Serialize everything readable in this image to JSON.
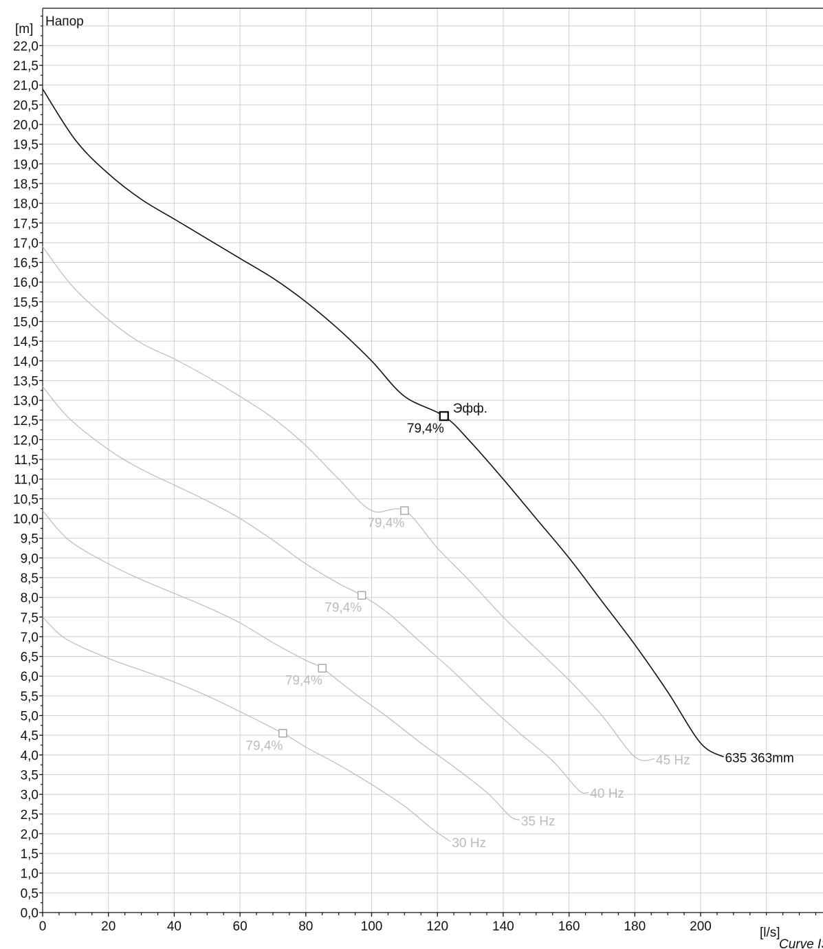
{
  "chart_data": {
    "type": "line",
    "title": "",
    "y_axis_title": "Напор",
    "ylabel": "[m]",
    "xlabel": "[l/s]",
    "footer": "Curve ISO",
    "xlim": [
      0,
      236
    ],
    "ylim": [
      0,
      22.8
    ],
    "x_ticks": [
      0,
      20,
      40,
      60,
      80,
      100,
      120,
      140,
      160,
      180,
      200
    ],
    "y_ticks": [
      "0,0",
      "0,5",
      "1,0",
      "1,5",
      "2,0",
      "2,5",
      "3,0",
      "3,5",
      "4,0",
      "4,5",
      "5,0",
      "5,5",
      "6,0",
      "6,5",
      "7,0",
      "7,5",
      "8,0",
      "8,5",
      "9,0",
      "9,5",
      "10,0",
      "10,5",
      "11,0",
      "11,5",
      "12,0",
      "12,5",
      "13,0",
      "13,5",
      "14,0",
      "14,5",
      "15,0",
      "15,5",
      "16,0",
      "16,5",
      "17,0",
      "17,5",
      "18,0",
      "18,5",
      "19,0",
      "19,5",
      "20,0",
      "20,5",
      "21,0",
      "21,5",
      "22,0"
    ],
    "grid": true,
    "series": [
      {
        "name": "635 363mm",
        "color": "#111111",
        "points": [
          [
            0,
            20.9
          ],
          [
            10,
            19.6
          ],
          [
            20,
            18.75
          ],
          [
            30,
            18.1
          ],
          [
            40,
            17.6
          ],
          [
            50,
            17.1
          ],
          [
            60,
            16.6
          ],
          [
            70,
            16.1
          ],
          [
            80,
            15.5
          ],
          [
            90,
            14.8
          ],
          [
            100,
            14.0
          ],
          [
            110,
            13.1
          ],
          [
            122,
            12.6
          ],
          [
            130,
            11.95
          ],
          [
            140,
            11.0
          ],
          [
            150,
            10.0
          ],
          [
            160,
            9.0
          ],
          [
            170,
            7.9
          ],
          [
            180,
            6.8
          ],
          [
            190,
            5.6
          ],
          [
            200,
            4.3
          ],
          [
            207,
            3.95
          ]
        ],
        "marker": {
          "x": 122,
          "y": 12.6,
          "label": "79,4%"
        },
        "efficiency_label": "Эфф."
      },
      {
        "name": "45 Hz",
        "color": "#bbbbbb",
        "points": [
          [
            0,
            16.9
          ],
          [
            9,
            15.9
          ],
          [
            20,
            15.05
          ],
          [
            30,
            14.45
          ],
          [
            40,
            14.05
          ],
          [
            50,
            13.6
          ],
          [
            60,
            13.1
          ],
          [
            70,
            12.55
          ],
          [
            80,
            11.85
          ],
          [
            90,
            11.0
          ],
          [
            100,
            10.2
          ],
          [
            110,
            10.2
          ],
          [
            120,
            9.25
          ],
          [
            130,
            8.4
          ],
          [
            140,
            7.5
          ],
          [
            150,
            6.7
          ],
          [
            160,
            5.9
          ],
          [
            170,
            5.0
          ],
          [
            180,
            3.95
          ],
          [
            186,
            3.9
          ]
        ],
        "marker": {
          "x": 110,
          "y": 10.2,
          "label": "79,4%"
        }
      },
      {
        "name": "40 Hz",
        "color": "#bbbbbb",
        "points": [
          [
            0,
            13.35
          ],
          [
            8,
            12.55
          ],
          [
            20,
            11.75
          ],
          [
            30,
            11.25
          ],
          [
            40,
            10.85
          ],
          [
            50,
            10.45
          ],
          [
            60,
            10.0
          ],
          [
            70,
            9.45
          ],
          [
            80,
            8.85
          ],
          [
            90,
            8.35
          ],
          [
            97,
            8.05
          ],
          [
            105,
            7.6
          ],
          [
            115,
            6.85
          ],
          [
            125,
            6.1
          ],
          [
            135,
            5.3
          ],
          [
            145,
            4.55
          ],
          [
            155,
            3.85
          ],
          [
            163,
            3.1
          ],
          [
            166,
            3.05
          ]
        ],
        "marker": {
          "x": 97,
          "y": 8.05,
          "label": "79,4%"
        }
      },
      {
        "name": "35 Hz",
        "color": "#bbbbbb",
        "points": [
          [
            0,
            10.2
          ],
          [
            8,
            9.45
          ],
          [
            20,
            8.85
          ],
          [
            30,
            8.45
          ],
          [
            40,
            8.1
          ],
          [
            50,
            7.75
          ],
          [
            60,
            7.35
          ],
          [
            70,
            6.85
          ],
          [
            80,
            6.4
          ],
          [
            85,
            6.2
          ],
          [
            95,
            5.55
          ],
          [
            105,
            4.95
          ],
          [
            115,
            4.3
          ],
          [
            125,
            3.7
          ],
          [
            135,
            3.05
          ],
          [
            142,
            2.45
          ],
          [
            145,
            2.35
          ]
        ],
        "marker": {
          "x": 85,
          "y": 6.2,
          "label": "79,4%"
        }
      },
      {
        "name": "30 Hz",
        "color": "#bbbbbb",
        "points": [
          [
            0,
            7.5
          ],
          [
            7,
            6.95
          ],
          [
            20,
            6.45
          ],
          [
            30,
            6.15
          ],
          [
            40,
            5.85
          ],
          [
            50,
            5.5
          ],
          [
            60,
            5.1
          ],
          [
            73,
            4.55
          ],
          [
            80,
            4.2
          ],
          [
            90,
            3.75
          ],
          [
            100,
            3.25
          ],
          [
            110,
            2.7
          ],
          [
            118,
            2.15
          ],
          [
            124,
            1.8
          ]
        ],
        "marker": {
          "x": 73,
          "y": 4.55,
          "label": "79,4%"
        }
      }
    ]
  }
}
